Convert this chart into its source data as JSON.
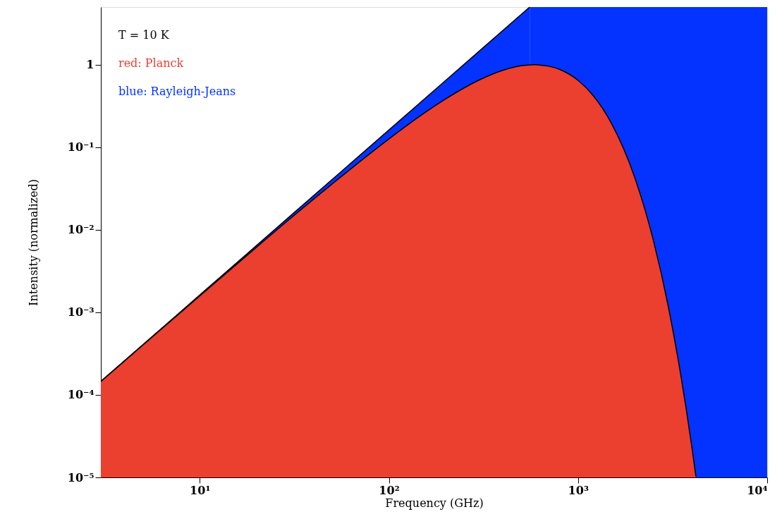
{
  "chart_data": {
    "type": "area",
    "xlabel": "Frequency (GHz)",
    "ylabel": "Intensity (normalized)",
    "log": "xy",
    "xlim": [
      3,
      10000
    ],
    "ylim": [
      1e-05,
      5
    ],
    "xticks": [
      {
        "value": 10,
        "label": "10¹"
      },
      {
        "value": 100,
        "label": "10²"
      },
      {
        "value": 1000,
        "label": "10³"
      },
      {
        "value": 10000,
        "label": "10⁴"
      }
    ],
    "yticks": [
      {
        "value": 1e-05,
        "label": "10⁻⁵"
      },
      {
        "value": 0.0001,
        "label": "10⁻⁴"
      },
      {
        "value": 0.001,
        "label": "10⁻³"
      },
      {
        "value": 0.01,
        "label": "10⁻²"
      },
      {
        "value": 0.1,
        "label": "10⁻¹"
      },
      1
    ],
    "grid": false,
    "legend": "top left",
    "annotations": [
      "T = 10 K"
    ],
    "bands": [
      {
        "axis": "x",
        "from": 555,
        "to": 10000,
        "label": null,
        "color": "#0433ff"
      }
    ],
    "series": [
      {
        "name": "red: Planck",
        "color": "#eb3f30",
        "x": [
          3,
          5,
          10,
          20,
          30,
          50,
          100,
          150,
          200,
          300,
          400,
          500,
          588,
          700,
          800,
          1000,
          1200,
          1500,
          2000,
          2500,
          3000,
          3500,
          4000,
          4200
        ],
        "values": [
          0.000145,
          0.0004,
          0.00158,
          0.00617,
          0.0136,
          0.0358,
          0.126,
          0.249,
          0.386,
          0.652,
          0.855,
          0.97,
          1.0,
          0.96,
          0.876,
          0.646,
          0.426,
          0.196,
          0.0422,
          0.00749,
          0.00118,
          0.000169,
          2.3e-05,
          1.02e-05
        ]
      },
      {
        "name": "blue: Rayleigh-Jeans",
        "color": "#0433ff",
        "x": [
          3,
          10,
          30,
          100,
          300,
          555
        ],
        "values": [
          0.000146,
          0.00162,
          0.0146,
          0.162,
          1.46,
          5.0
        ]
      }
    ]
  }
}
